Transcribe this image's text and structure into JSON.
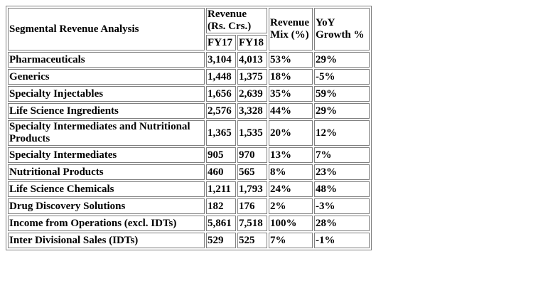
{
  "table": {
    "title": "Segmental Revenue Analysis",
    "headers": {
      "revenue": "Revenue (Rs. Crs.)",
      "fy17": "FY17",
      "fy18": "FY18",
      "mix": "Revenue Mix (%)",
      "yoy": "YoY Growth %"
    },
    "rows": [
      {
        "segment": "Pharmaceuticals",
        "fy17": "3,104",
        "fy18": "4,013",
        "mix": "53%",
        "yoy": "29%"
      },
      {
        "segment": "Generics",
        "fy17": "1,448",
        "fy18": "1,375",
        "mix": "18%",
        "yoy": "-5%"
      },
      {
        "segment": "Specialty Injectables",
        "fy17": "1,656",
        "fy18": "2,639",
        "mix": "35%",
        "yoy": "59%"
      },
      {
        "segment": "Life Science Ingredients",
        "fy17": "2,576",
        "fy18": "3,328",
        "mix": "44%",
        "yoy": "29%"
      },
      {
        "segment": "Specialty Intermediates and Nutritional Products",
        "fy17": "1,365",
        "fy18": "1,535",
        "mix": "20%",
        "yoy": "12%"
      },
      {
        "segment": "Specialty Intermediates",
        "fy17": "905",
        "fy18": "970",
        "mix": "13%",
        "yoy": "7%"
      },
      {
        "segment": "Nutritional Products",
        "fy17": "460",
        "fy18": "565",
        "mix": "8%",
        "yoy": "23%"
      },
      {
        "segment": "Life Science Chemicals",
        "fy17": "1,211",
        "fy18": "1,793",
        "mix": "24%",
        "yoy": "48%"
      },
      {
        "segment": "Drug Discovery Solutions",
        "fy17": "182",
        "fy18": "176",
        "mix": "2%",
        "yoy": "-3%"
      },
      {
        "segment": "Income from Operations (excl. IDTs)",
        "fy17": "5,861",
        "fy18": "7,518",
        "mix": "100%",
        "yoy": "28%"
      },
      {
        "segment": "Inter Divisional Sales (IDTs)",
        "fy17": "529",
        "fy18": "525",
        "mix": "7%",
        "yoy": "-1%"
      }
    ]
  }
}
